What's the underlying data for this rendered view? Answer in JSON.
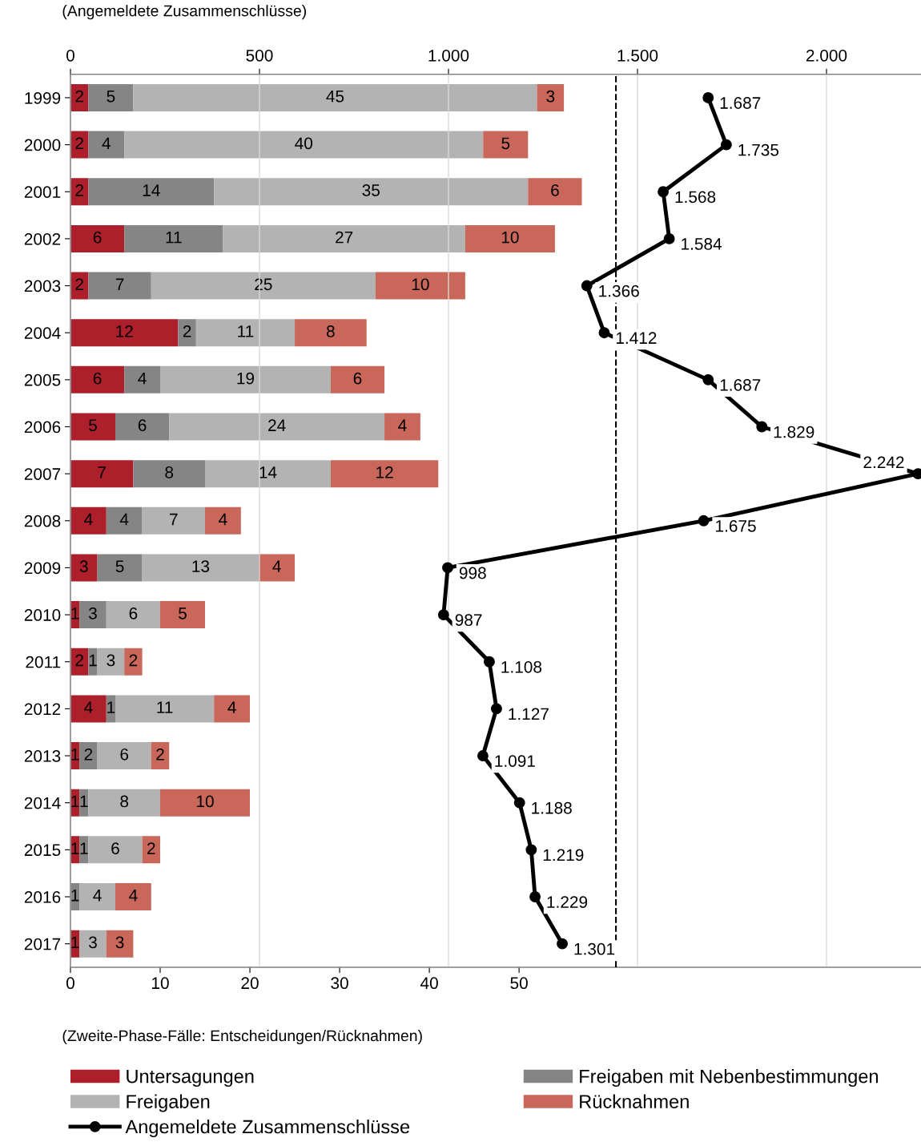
{
  "chart_data": {
    "type": "bar",
    "orientation": "horizontal",
    "stacked": true,
    "data_labels": true,
    "categories": [
      "1999",
      "2000",
      "2001",
      "2002",
      "2003",
      "2004",
      "2005",
      "2006",
      "2007",
      "2008",
      "2009",
      "2010",
      "2011",
      "2012",
      "2013",
      "2014",
      "2015",
      "2016",
      "2017"
    ],
    "xlabel": "(Zweite-Phase-Fälle: Entscheidungen/Rücknahmen)",
    "x2label": "(Angemeldete Zusammenschlüsse)",
    "xlim": [
      0,
      94.8
    ],
    "xticks": [
      0,
      10,
      20,
      30,
      40,
      50
    ],
    "x2lim": [
      0,
      2250
    ],
    "x2ticks": [
      0,
      500,
      {
        "value": 1000,
        "label": "1.000"
      },
      {
        "value": 1500,
        "label": "1.500"
      },
      {
        "value": 2000,
        "label": "2.000"
      }
    ],
    "grid": "x2",
    "legend": "bottom",
    "ref_lines": [
      {
        "axis": "x2",
        "value": 1443,
        "color": "#000000",
        "line_style": "dashed"
      }
    ],
    "series": [
      {
        "name": "Untersagungen",
        "color": "#ad1f2b",
        "values": [
          2,
          2,
          2,
          6,
          2,
          12,
          6,
          5,
          7,
          4,
          3,
          1,
          2,
          4,
          1,
          1,
          1,
          null,
          1
        ]
      },
      {
        "name": "Freigaben mit Nebenbestimmungen",
        "color": "#858585",
        "values": [
          5,
          4,
          14,
          11,
          7,
          2,
          4,
          6,
          8,
          4,
          5,
          3,
          1,
          1,
          2,
          1,
          1,
          1,
          null
        ]
      },
      {
        "name": "Freigaben",
        "color": "#b3b3b3",
        "values": [
          45,
          40,
          35,
          27,
          25,
          11,
          19,
          24,
          14,
          7,
          13,
          6,
          3,
          11,
          6,
          8,
          6,
          4,
          3
        ]
      },
      {
        "name": "Rücknahmen",
        "color": "#c8675a",
        "values": [
          3,
          5,
          6,
          10,
          10,
          8,
          6,
          4,
          12,
          4,
          4,
          5,
          2,
          4,
          2,
          10,
          2,
          4,
          3
        ]
      },
      {
        "name": "Angemeldete Zusammenschlüsse",
        "type": "line",
        "axis": "x2",
        "color": "#000000",
        "marker": "circle",
        "line_style": "solid",
        "values": [
          1687,
          1735,
          1568,
          1584,
          1366,
          1412,
          1687,
          1829,
          2242,
          1675,
          998,
          987,
          1108,
          1127,
          1091,
          1188,
          1219,
          1229,
          1301
        ],
        "value_labels": [
          "1.687",
          "1.735",
          "1.568",
          "1.584",
          "1.366",
          "1.412",
          "1.687",
          "1.829",
          "2.242",
          "1.675",
          "998",
          "987",
          "1.108",
          "1.127",
          "1.091",
          "1.188",
          "1.219",
          "1.229",
          "1.301"
        ]
      }
    ]
  }
}
